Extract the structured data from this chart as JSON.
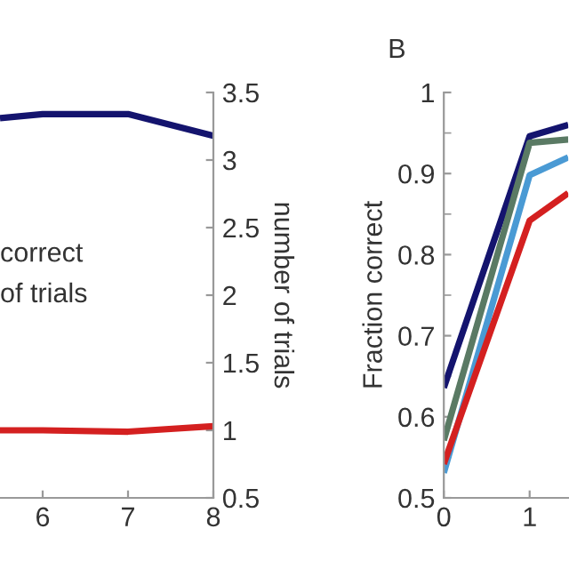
{
  "chart_data": [
    {
      "type": "line",
      "y2label": "number of trials",
      "annotations": [
        "correct",
        "of trials"
      ],
      "x": [
        5.5,
        6,
        7,
        8
      ],
      "xlim": [
        5.5,
        8
      ],
      "xticks": [
        6,
        7,
        8
      ],
      "y2lim": [
        0.5,
        3.5
      ],
      "y2ticks": [
        0.5,
        1,
        1.5,
        2,
        2.5,
        3,
        3.5
      ],
      "grid": false,
      "legend": false,
      "series": [
        {
          "color": "#14146e",
          "axis": "y2",
          "values": [
            3.31,
            3.34,
            3.34,
            3.18
          ]
        },
        {
          "color": "#d42020",
          "axis": "y2",
          "values": [
            1.0,
            1.0,
            0.99,
            1.03
          ]
        }
      ]
    },
    {
      "type": "line",
      "title": "B",
      "ylabel": "Fraction correct",
      "x": [
        0,
        1,
        1.45
      ],
      "xlim": [
        0,
        1.45
      ],
      "xticks": [
        0,
        1
      ],
      "ylim": [
        0.5,
        1
      ],
      "yticks": [
        0.5,
        0.6,
        0.7,
        0.8,
        0.9,
        1
      ],
      "grid": false,
      "legend": false,
      "series": [
        {
          "color": "#14146e",
          "values": [
            0.636,
            0.946,
            0.96
          ]
        },
        {
          "color": "#5a7a64",
          "values": [
            0.571,
            0.938,
            0.942
          ]
        },
        {
          "color": "#4a9ad4",
          "values": [
            0.531,
            0.898,
            0.92
          ]
        },
        {
          "color": "#d42020",
          "values": [
            0.542,
            0.842,
            0.876
          ]
        }
      ]
    }
  ]
}
